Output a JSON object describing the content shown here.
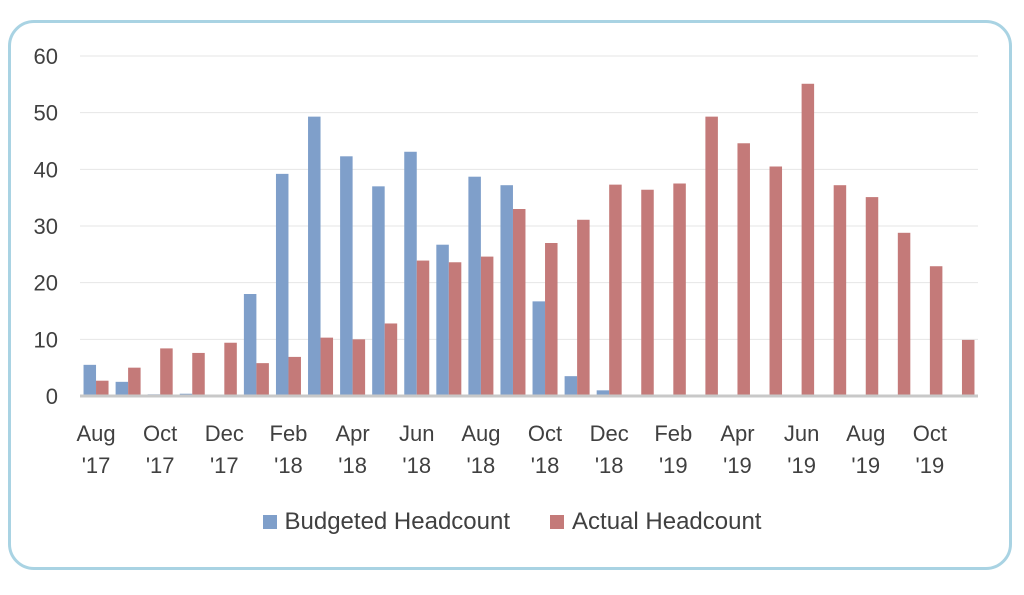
{
  "chart_data": {
    "type": "bar",
    "categories": [
      "Aug '17",
      "Sep '17",
      "Oct '17",
      "Nov '17",
      "Dec '17",
      "Jan '18",
      "Feb '18",
      "Mar '18",
      "Apr '18",
      "May '18",
      "Jun '18",
      "Jul '18",
      "Aug '18",
      "Sep '18",
      "Oct '18",
      "Nov '18",
      "Dec '18",
      "Jan '19",
      "Feb '19",
      "Mar '19",
      "Apr '19",
      "May '19",
      "Jun '19",
      "Jul '19",
      "Aug '19",
      "Sep '19",
      "Oct '19",
      "Nov '19"
    ],
    "tick_labels": [
      {
        "index": 0,
        "lines": [
          "Aug",
          "'17"
        ]
      },
      {
        "index": 2,
        "lines": [
          "Oct",
          "'17"
        ]
      },
      {
        "index": 4,
        "lines": [
          "Dec",
          "'17"
        ]
      },
      {
        "index": 6,
        "lines": [
          "Feb",
          "'18"
        ]
      },
      {
        "index": 8,
        "lines": [
          "Apr",
          "'18"
        ]
      },
      {
        "index": 10,
        "lines": [
          "Jun",
          "'18"
        ]
      },
      {
        "index": 12,
        "lines": [
          "Aug",
          "'18"
        ]
      },
      {
        "index": 14,
        "lines": [
          "Oct",
          "'18"
        ]
      },
      {
        "index": 16,
        "lines": [
          "Dec",
          "'18"
        ]
      },
      {
        "index": 18,
        "lines": [
          "Feb",
          "'19"
        ]
      },
      {
        "index": 20,
        "lines": [
          "Apr",
          "'19"
        ]
      },
      {
        "index": 22,
        "lines": [
          "Jun",
          "'19"
        ]
      },
      {
        "index": 24,
        "lines": [
          "Aug",
          "'19"
        ]
      },
      {
        "index": 26,
        "lines": [
          "Oct",
          "'19"
        ]
      }
    ],
    "series": [
      {
        "name": "Budgeted Headcount",
        "color": "#7f9fca",
        "values": [
          5.5,
          2.5,
          0.3,
          0.4,
          0,
          18,
          39.2,
          49.3,
          42.3,
          37,
          43.1,
          26.7,
          38.7,
          37.2,
          16.7,
          3.5,
          1,
          0,
          0,
          0,
          0,
          0,
          0,
          0,
          0,
          0,
          0,
          0
        ]
      },
      {
        "name": "Actual Headcount",
        "color": "#c47a79",
        "values": [
          2.7,
          5,
          8.4,
          7.6,
          9.4,
          5.8,
          6.9,
          10.3,
          10,
          12.8,
          23.9,
          23.6,
          24.6,
          33,
          27,
          31.1,
          37.3,
          36.4,
          37.5,
          49.3,
          44.6,
          40.5,
          55.1,
          37.2,
          35.1,
          28.8,
          22.9,
          9.9
        ]
      }
    ],
    "ylim": [
      0,
      60
    ],
    "yticks": [
      0,
      10,
      20,
      30,
      40,
      50,
      60
    ],
    "grid": true,
    "legend_position": "bottom",
    "xlabel": "",
    "ylabel": ""
  }
}
